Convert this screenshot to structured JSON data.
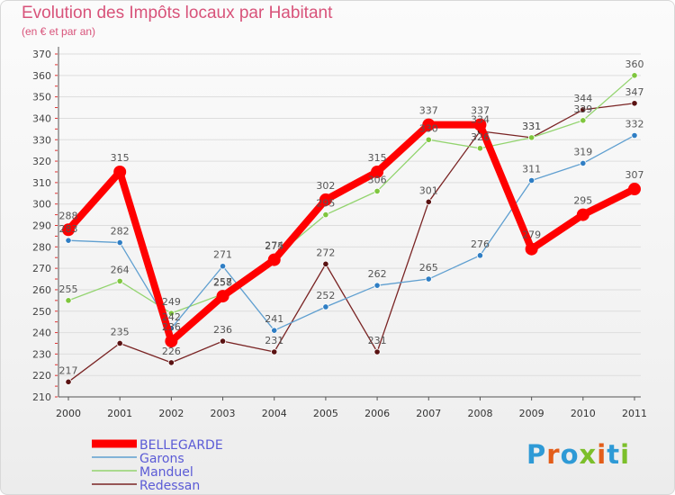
{
  "header": {
    "title": "Evolution des Impôts locaux par Habitant",
    "subtitle": "(en € et par an)"
  },
  "logo": {
    "text": "Proxiti",
    "letter_colors": [
      "#2e9ad6",
      "#e35d19",
      "#2e9ad6",
      "#7cbf2a",
      "#e35d19",
      "#2e9ad6",
      "#7cbf2a"
    ]
  },
  "chart_data": {
    "type": "line",
    "title": "Evolution des Impôts locaux par Habitant",
    "subtitle": "(en € et par an)",
    "xlabel": "",
    "ylabel": "",
    "categories": [
      "2000",
      "2001",
      "2002",
      "2003",
      "2004",
      "2005",
      "2006",
      "2007",
      "2008",
      "2009",
      "2010",
      "2011"
    ],
    "ylim": [
      210,
      370
    ],
    "yticks": [
      210,
      220,
      230,
      240,
      250,
      260,
      270,
      280,
      290,
      300,
      310,
      320,
      330,
      340,
      350,
      360,
      370
    ],
    "grid": "horizontal",
    "legend_position": "bottom-left",
    "series": [
      {
        "name": "Redessan",
        "color": "#7a2424",
        "values": [
          217,
          235,
          226,
          236,
          231,
          272,
          231,
          301,
          334,
          331,
          344,
          347
        ]
      },
      {
        "name": "Manduel",
        "color": "#93d46f",
        "values": [
          255,
          264,
          249,
          258,
          275,
          295,
          306,
          330,
          326,
          331,
          339,
          360
        ]
      },
      {
        "name": "Garons",
        "color": "#5f9fd0",
        "values": [
          283,
          282,
          242,
          271,
          241,
          252,
          262,
          265,
          276,
          311,
          319,
          332
        ]
      },
      {
        "name": "BELLEGARDE",
        "color": "#ff0000",
        "values": [
          288,
          315,
          236,
          257,
          274,
          302,
          315,
          337,
          337,
          279,
          295,
          307
        ]
      }
    ],
    "legend_order": [
      "BELLEGARDE",
      "Garons",
      "Manduel",
      "Redessan"
    ],
    "marker_colors": {
      "Redessan": "#5a1212",
      "Manduel": "#7fc63e",
      "Garons": "#2f7ec4",
      "BELLEGARDE": "#ff0000"
    }
  }
}
